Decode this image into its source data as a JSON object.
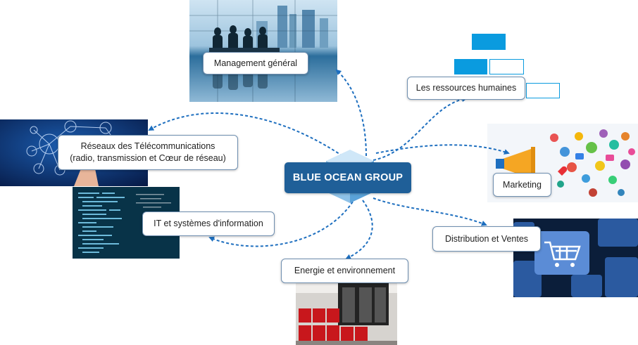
{
  "diagram": {
    "center_label": "BLUE OCEAN GROUP",
    "nodes": {
      "management": "Management général",
      "hr": "Les ressources humaines",
      "telecom_line1": "Réseaux des Télécommunications",
      "telecom_line2": "(radio, transmission et Cœur de réseau)",
      "marketing": "Marketing",
      "it": "IT et systèmes d'information",
      "distribution": "Distribution et Ventes",
      "energy": "Energie et environnement"
    },
    "colors": {
      "center_fill": "#1f5f98",
      "connector": "#1e6fbf",
      "hr_blocks": "#0a9bdf"
    },
    "icons": {
      "center": "building-icon",
      "hr": "org-chart-icon"
    }
  }
}
